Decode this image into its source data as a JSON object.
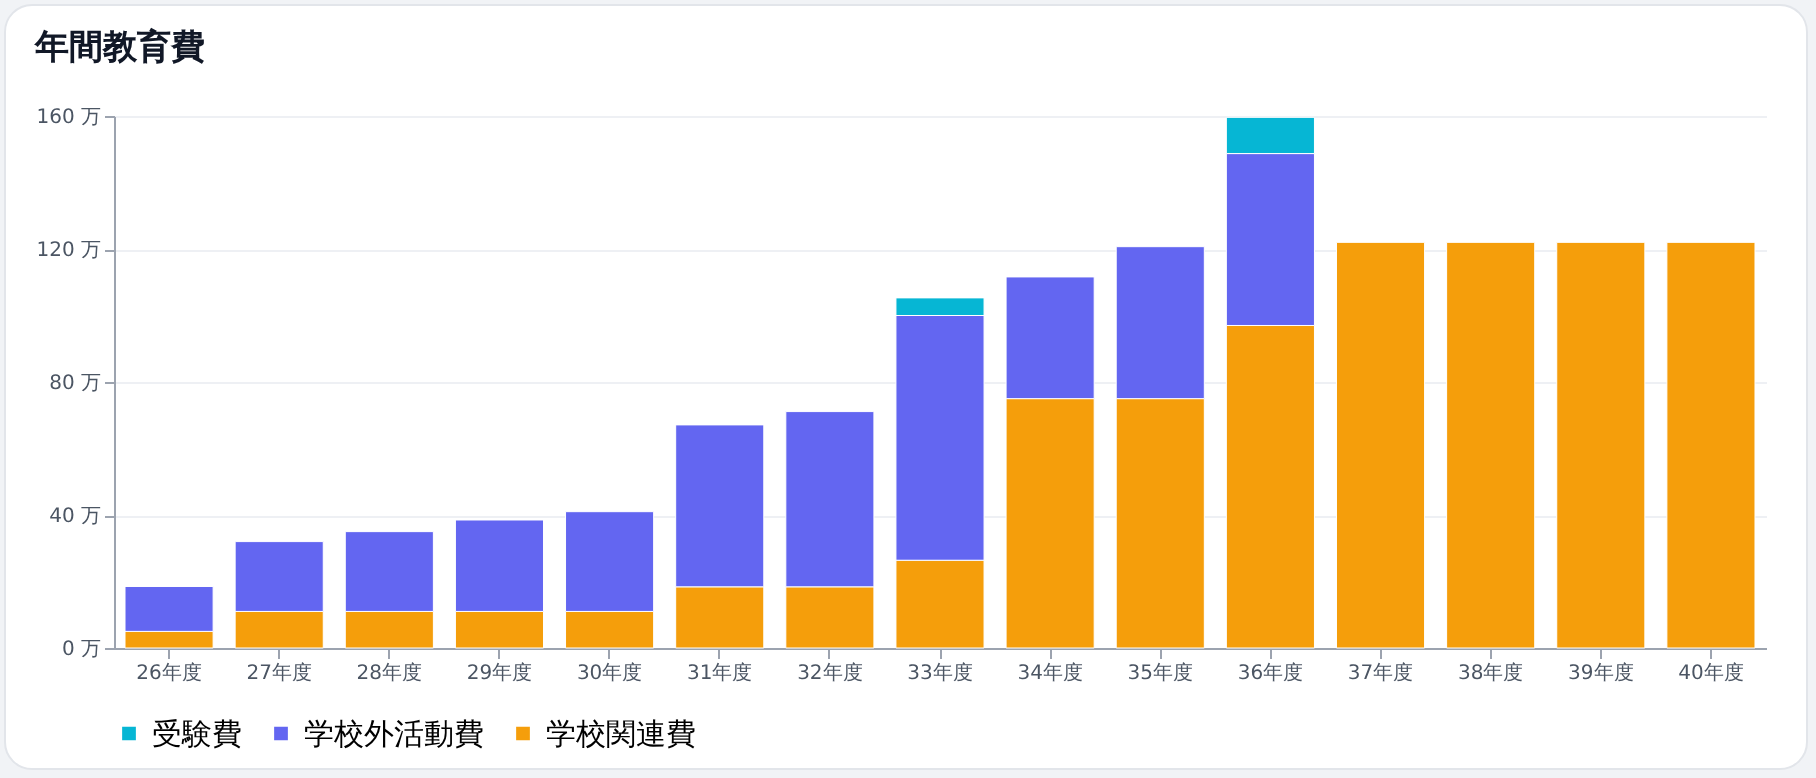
{
  "chart_data": {
    "type": "bar",
    "title": "年間教育費",
    "stacked": true,
    "legend": "bottom",
    "grid": "y",
    "categories": [
      "26年度",
      "27年度",
      "28年度",
      "29年度",
      "30年度",
      "31年度",
      "32年度",
      "33年度",
      "34年度",
      "35年度",
      "36年度",
      "37年度",
      "38年度",
      "39年度",
      "40年度"
    ],
    "series": [
      {
        "name": "学校関連費",
        "color": "#f59e0b",
        "values": [
          5,
          11,
          11,
          11,
          11,
          18.4,
          18.4,
          26.4,
          75,
          75,
          97,
          122,
          122,
          122,
          122
        ]
      },
      {
        "name": "学校外活動費",
        "color": "#6366f1",
        "values": [
          13.5,
          21,
          24,
          27.5,
          30,
          48.7,
          52.7,
          73.6,
          36.6,
          45.7,
          51.7,
          null,
          null,
          null,
          null
        ]
      },
      {
        "name": "受験費",
        "color": "#06b6d4",
        "values": [
          null,
          null,
          null,
          null,
          null,
          null,
          null,
          5.3,
          null,
          null,
          10.9,
          null,
          null,
          null,
          null
        ]
      }
    ],
    "ylim": [
      0,
      160
    ],
    "yticks": [
      {
        "value": 0,
        "label": "0 万"
      },
      {
        "value": 40,
        "label": "40 万"
      },
      {
        "value": 80,
        "label": "80 万"
      },
      {
        "value": 120,
        "label": "120 万"
      },
      {
        "value": 160,
        "label": "160 万"
      }
    ]
  }
}
